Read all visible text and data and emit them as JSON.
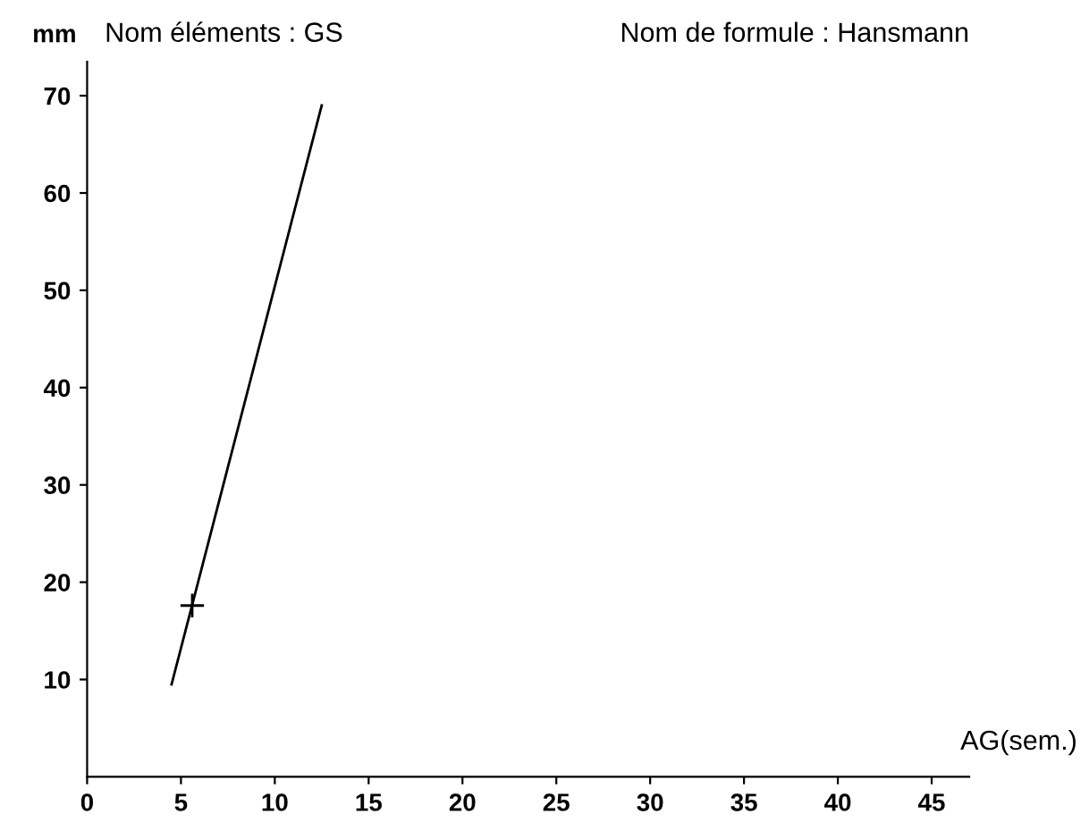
{
  "chart_data": {
    "type": "line",
    "title": "Nom éléments : GS",
    "subtitle": "Nom de formule : Hansmann",
    "ylabel": "mm",
    "xlabel": "AG(sem.)",
    "series": [
      {
        "color": "#000000",
        "x": [
          4.5,
          12.5
        ],
        "values": [
          9.5,
          69
        ],
        "marker": "none",
        "line_style": "solid"
      },
      {
        "type": "scatter",
        "color": "#000000",
        "x": [
          5.6
        ],
        "values": [
          17.6
        ],
        "marker": "cross"
      }
    ],
    "xlim": [
      0,
      47
    ],
    "xticks": [
      0,
      5,
      10,
      15,
      20,
      25,
      30,
      35,
      40,
      45
    ],
    "ylim": [
      0,
      73.5
    ],
    "yticks": [
      10,
      20,
      30,
      40,
      50,
      60,
      70
    ],
    "grid": false,
    "legend": false
  }
}
